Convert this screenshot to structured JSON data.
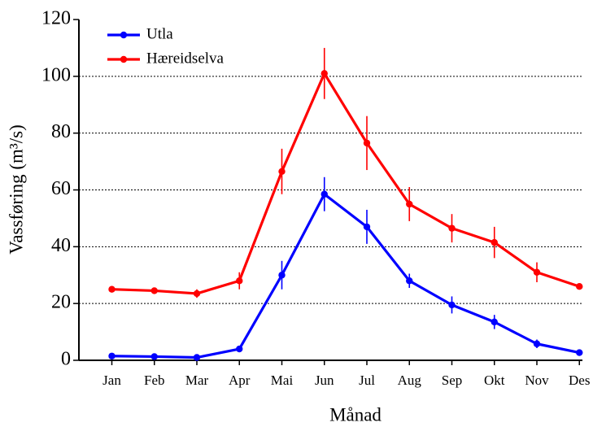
{
  "chart_data": {
    "type": "line",
    "x_label": "Månad",
    "y_label": "Vassføring (m³/s)",
    "categories": [
      "Jan",
      "Feb",
      "Mar",
      "Apr",
      "Mai",
      "Jun",
      "Jul",
      "Aug",
      "Sep",
      "Okt",
      "Nov",
      "Des"
    ],
    "series": [
      {
        "name": "Utla",
        "color": "#0000ff",
        "values": [
          1.5,
          1.3,
          1.0,
          4,
          30,
          58.5,
          47,
          28,
          19.5,
          13.5,
          5.8,
          2.7
        ],
        "errors": [
          0.5,
          0.5,
          0.5,
          1,
          5,
          6,
          6,
          2.5,
          3,
          2.5,
          1.5,
          1
        ]
      },
      {
        "name": "Hæreidselva",
        "color": "#ff0000",
        "values": [
          25,
          24.5,
          23.5,
          28,
          66.5,
          101,
          76.5,
          55,
          46.5,
          41.5,
          31,
          26
        ],
        "errors": [
          1,
          1,
          1.5,
          3,
          8,
          9,
          9.5,
          6,
          5,
          5.5,
          3.5,
          1
        ]
      }
    ],
    "ylim": [
      0,
      120
    ],
    "yticks": [
      0,
      20,
      40,
      60,
      80,
      100,
      120
    ],
    "grid": true,
    "legend": "upper left"
  }
}
